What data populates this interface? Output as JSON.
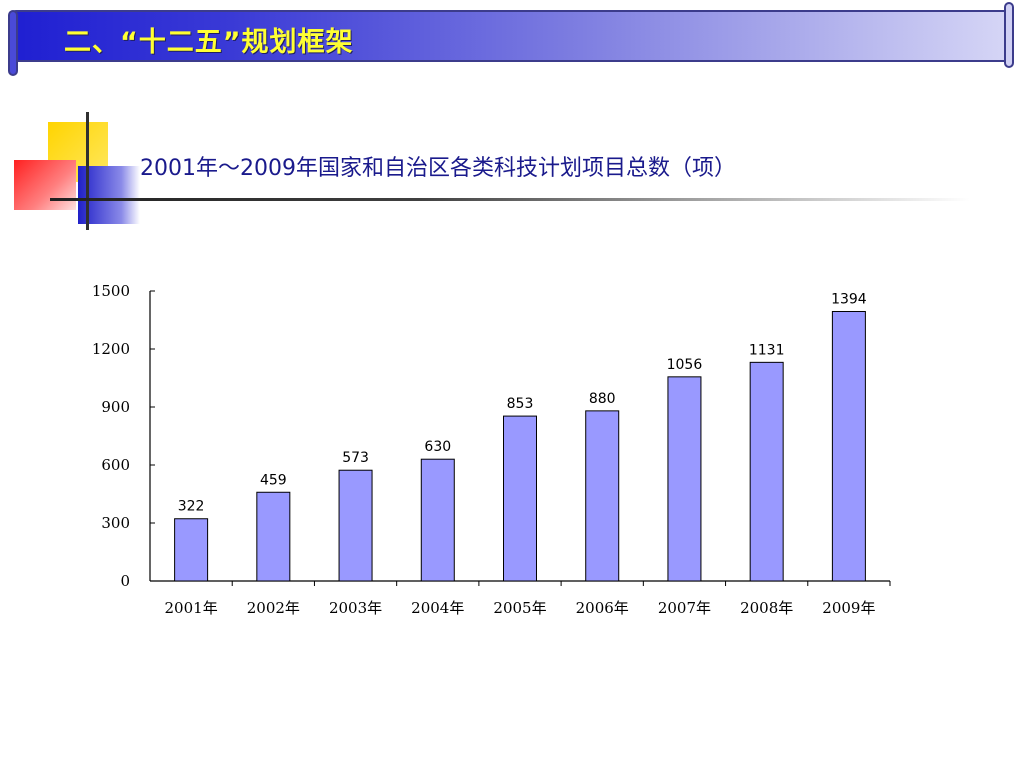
{
  "slide": {
    "title": "二、“十二五”规划框架",
    "subtitle": "2001年～2009年国家和自治区各类科技计划项目总数（项）"
  },
  "colors": {
    "bar": "#9999ff",
    "banner_text": "#ffff33",
    "subtitle": "#1a1a8c"
  },
  "chart_data": {
    "type": "bar",
    "title": "2001年～2009年国家和自治区各类科技计划项目总数（项）",
    "categories": [
      "2001年",
      "2002年",
      "2003年",
      "2004年",
      "2005年",
      "2006年",
      "2007年",
      "2008年",
      "2009年"
    ],
    "values": [
      322,
      459,
      573,
      630,
      853,
      880,
      1056,
      1131,
      1394
    ],
    "yticks": [
      "0",
      "300",
      "600",
      "900",
      "1200",
      "1500"
    ],
    "ylim": [
      0,
      1500
    ],
    "grid": false,
    "legend": "none"
  }
}
